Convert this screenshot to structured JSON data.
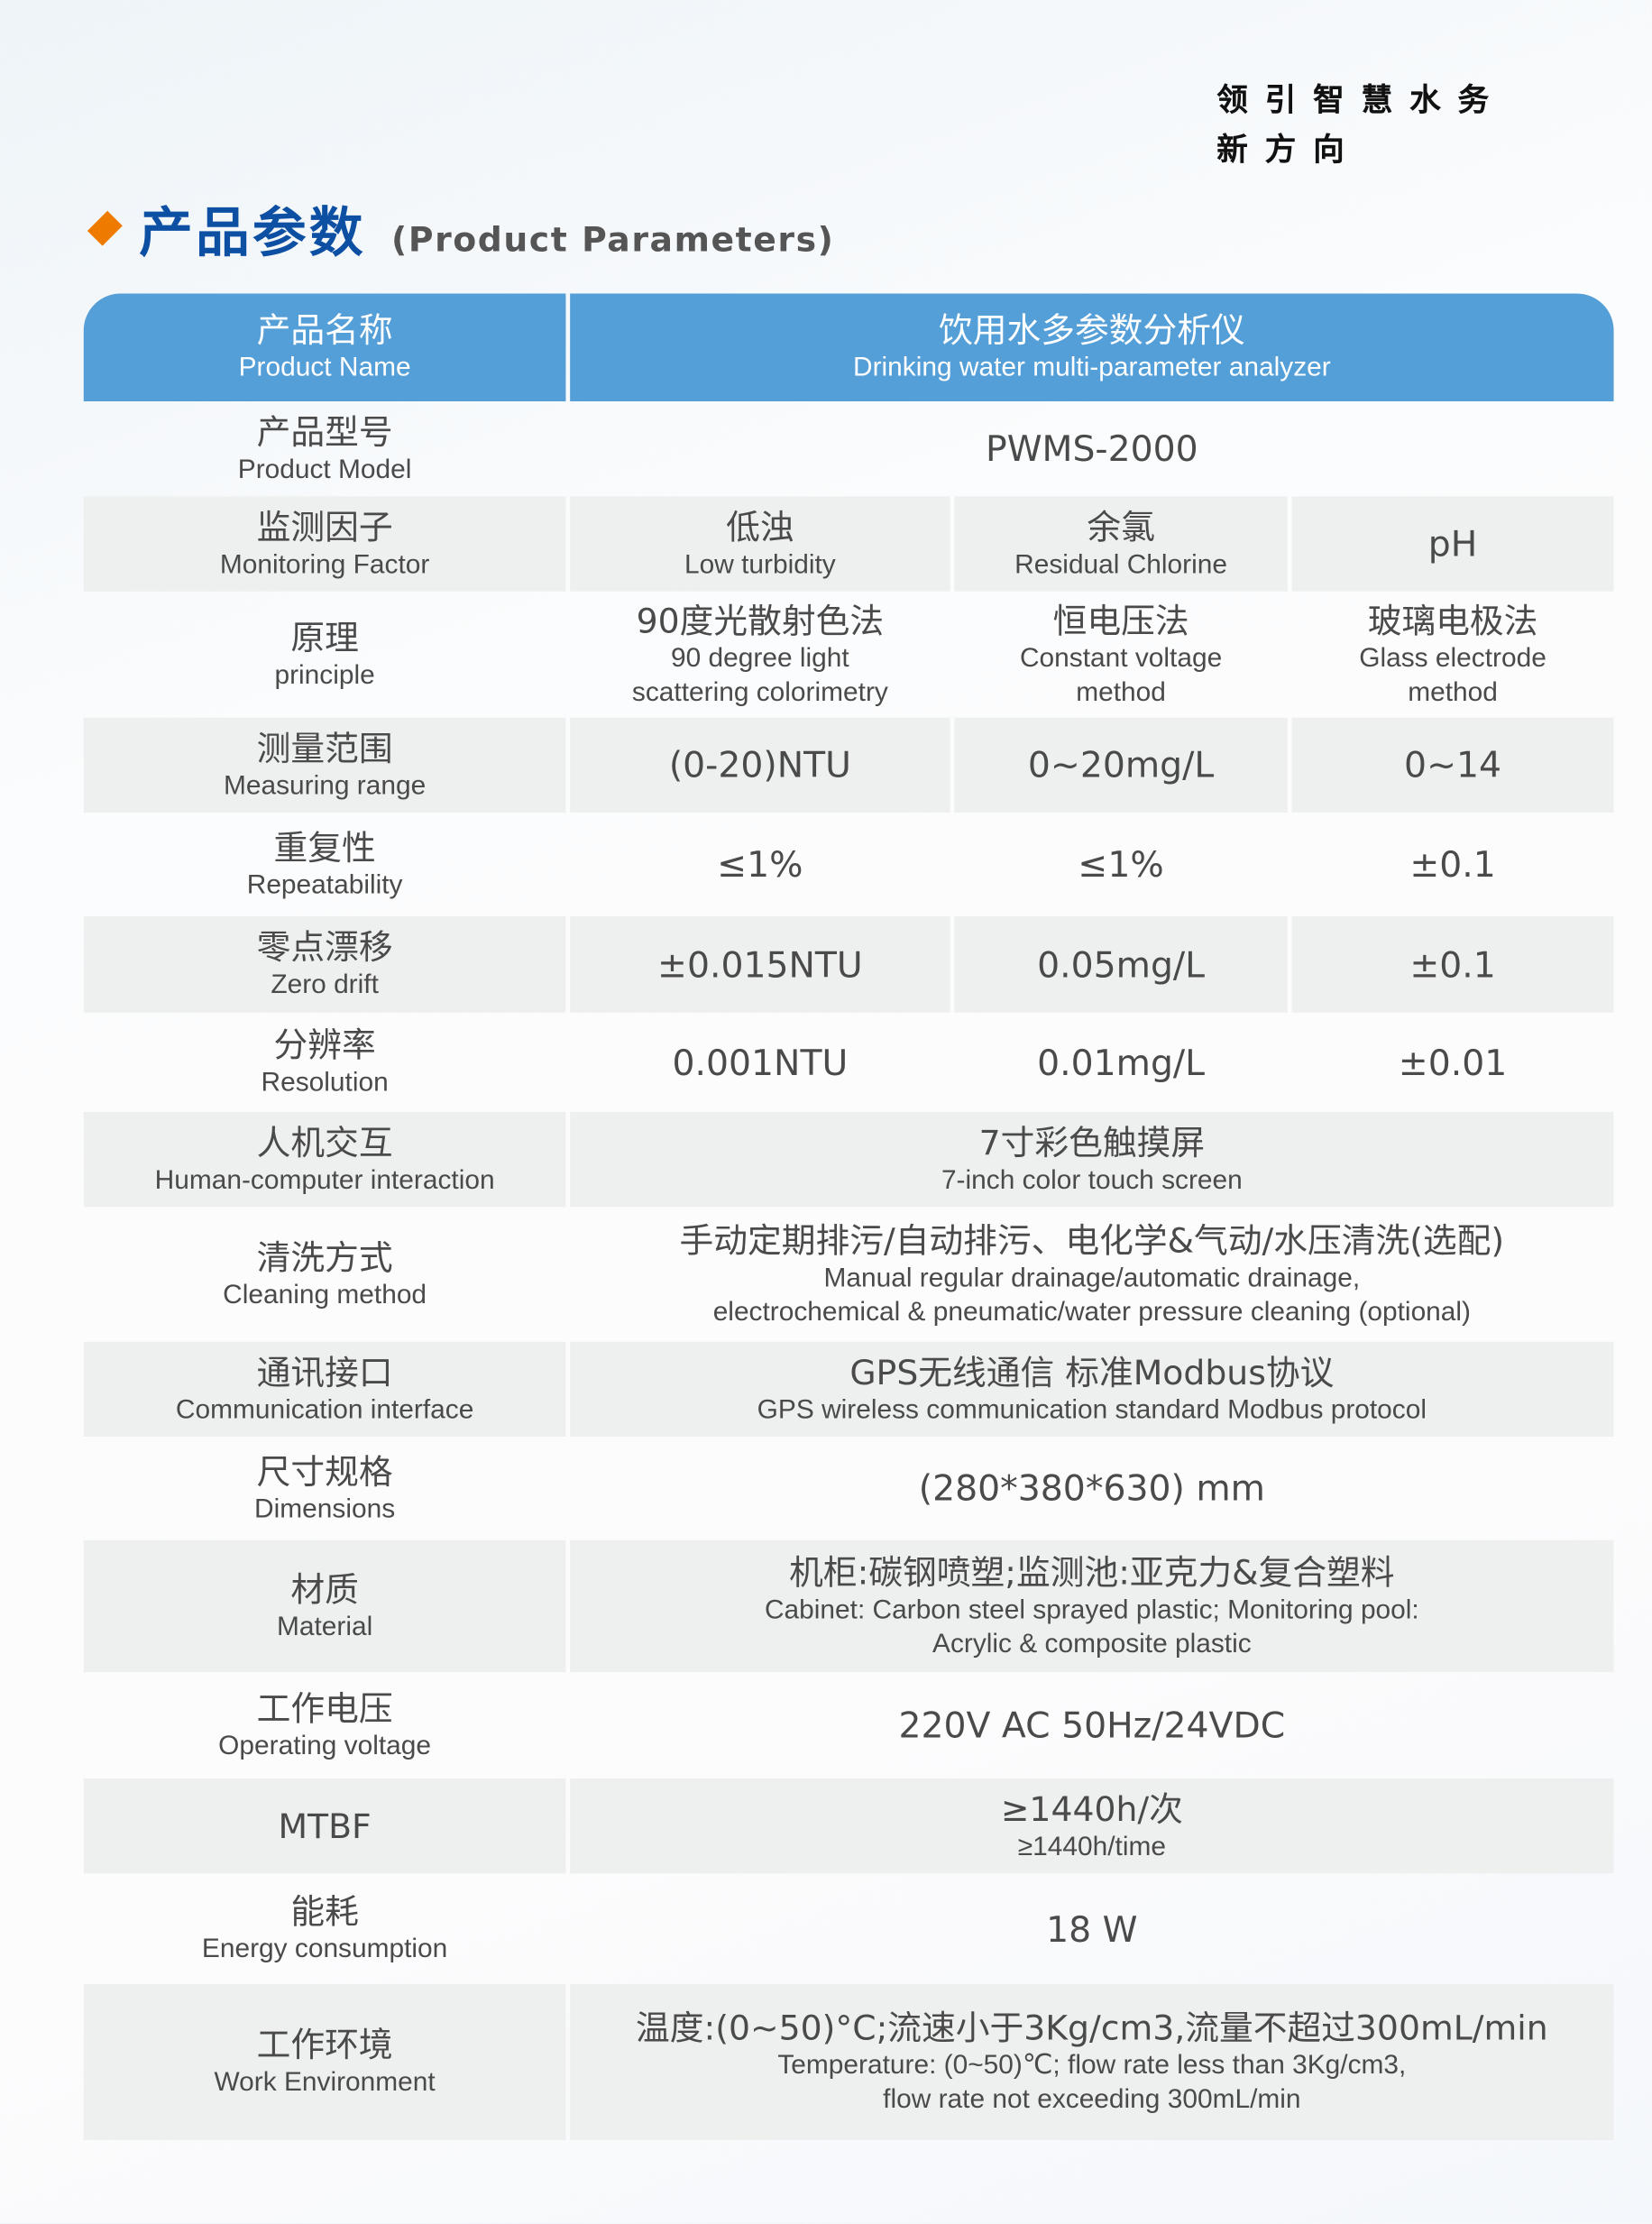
{
  "slogan": {
    "line1": "领引智慧水务",
    "line2": "新方向"
  },
  "title": {
    "cn": "产品参数",
    "en": "(Product Parameters)"
  },
  "colors": {
    "header": "#559fd8",
    "title": "#0d50a3",
    "accent": "#ee7a00",
    "row_alt": "#eef0ef"
  },
  "table": {
    "header": {
      "label_cn": "产品名称",
      "label_en": "Product Name",
      "value_cn": "饮用水多参数分析仪",
      "value_en": "Drinking water multi-parameter analyzer"
    },
    "rows": [
      {
        "label_cn": "产品型号",
        "label_en": "Product Model",
        "value": [
          "PWMS-2000"
        ]
      },
      {
        "label_cn": "监测因子",
        "label_en": "Monitoring Factor",
        "cells": [
          [
            "低浊",
            "Low turbidity"
          ],
          [
            "余氯",
            "Residual Chlorine"
          ],
          [
            "pH"
          ]
        ]
      },
      {
        "label_cn": "原理",
        "label_en": "principle",
        "cells": [
          [
            "90度光散射色法",
            "90 degree light",
            "scattering colorimetry"
          ],
          [
            "恒电压法",
            "Constant voltage",
            "method"
          ],
          [
            "玻璃电极法",
            "Glass electrode",
            "method"
          ]
        ]
      },
      {
        "label_cn": "测量范围",
        "label_en": "Measuring range",
        "cells": [
          [
            "(0-20)NTU"
          ],
          [
            "0~20mg/L"
          ],
          [
            "0~14"
          ]
        ]
      },
      {
        "label_cn": "重复性",
        "label_en": "Repeatability",
        "cells": [
          [
            "≤1%"
          ],
          [
            "≤1%"
          ],
          [
            "±0.1"
          ]
        ]
      },
      {
        "label_cn": "零点漂移",
        "label_en": "Zero drift",
        "cells": [
          [
            "±0.015NTU"
          ],
          [
            "0.05mg/L"
          ],
          [
            "±0.1"
          ]
        ]
      },
      {
        "label_cn": "分辨率",
        "label_en": "Resolution",
        "cells": [
          [
            "0.001NTU"
          ],
          [
            "0.01mg/L"
          ],
          [
            "±0.01"
          ]
        ]
      },
      {
        "label_cn": "人机交互",
        "label_en": "Human-computer interaction",
        "value": [
          "7寸彩色触摸屏",
          "7-inch color touch screen"
        ]
      },
      {
        "label_cn": "清洗方式",
        "label_en": "Cleaning method",
        "value": [
          "手动定期排污/自动排污、电化学&气动/水压清洗(选配)",
          "Manual regular drainage/automatic drainage,",
          "electrochemical & pneumatic/water pressure cleaning (optional)"
        ]
      },
      {
        "label_cn": "通讯接口",
        "label_en": "Communication interface",
        "value": [
          "GPS无线通信 标准Modbus协议",
          "GPS wireless communication standard Modbus protocol"
        ]
      },
      {
        "label_cn": "尺寸规格",
        "label_en": "Dimensions",
        "value": [
          "(280*380*630) mm"
        ]
      },
      {
        "label_cn": "材质",
        "label_en": "Material",
        "value": [
          "机柜:碳钢喷塑;监测池:亚克力&复合塑料",
          "Cabinet: Carbon steel sprayed plastic; Monitoring pool:",
          "Acrylic & composite plastic"
        ]
      },
      {
        "label_cn": "工作电压",
        "label_en": "Operating voltage",
        "value": [
          "220V AC 50Hz/24VDC"
        ]
      },
      {
        "label_cn": "MTBF",
        "label_en": "",
        "value": [
          "≥1440h/次",
          "≥1440h/time"
        ]
      },
      {
        "label_cn": "能耗",
        "label_en": "Energy consumption",
        "value": [
          "18 W"
        ]
      },
      {
        "label_cn": "工作环境",
        "label_en": "Work Environment",
        "value": [
          "温度:(0~50)°C;流速小于3Kg/cm3,流量不超过300mL/min",
          "Temperature: (0~50)℃; flow rate less than 3Kg/cm3,",
          "flow rate not exceeding 300mL/min"
        ]
      }
    ]
  }
}
